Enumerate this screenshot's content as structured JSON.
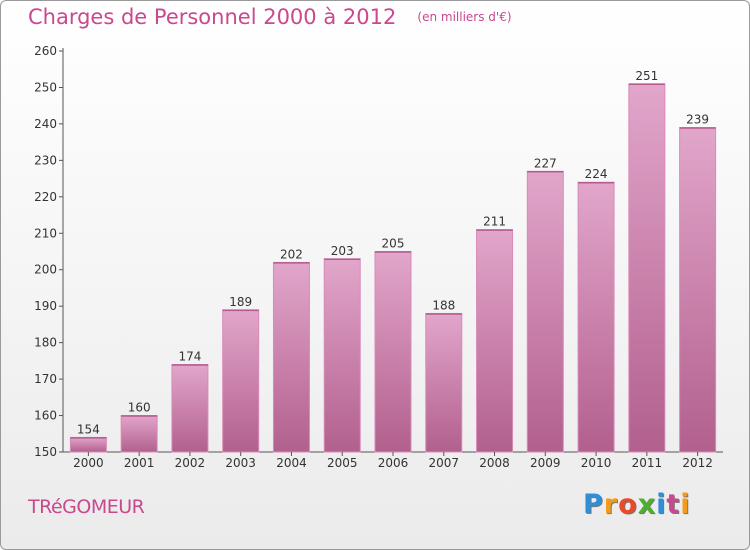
{
  "header": {
    "title": "Charges de Personnel 2000 à 2012",
    "subtitle": "(en milliers d'€)"
  },
  "footer": {
    "commune": "TRéGOMEUR",
    "logo": {
      "letters": [
        "P",
        "r",
        "o",
        "x",
        "i",
        "t",
        "i"
      ],
      "colors": [
        "#2f8fd6",
        "#f39b1b",
        "#e84a2a",
        "#4caf2f",
        "#2f8fd6",
        "#c9488e",
        "#f39b1b"
      ]
    }
  },
  "chart_data": {
    "type": "bar",
    "categories": [
      "2000",
      "2001",
      "2002",
      "2003",
      "2004",
      "2005",
      "2006",
      "2007",
      "2008",
      "2009",
      "2010",
      "2011",
      "2012"
    ],
    "values": [
      154,
      160,
      174,
      189,
      202,
      203,
      205,
      188,
      211,
      227,
      224,
      251,
      239
    ],
    "data_labels": [
      "154",
      "160",
      "174",
      "189",
      "202",
      "203",
      "205",
      "188",
      "211",
      "227",
      "224",
      "251",
      "239"
    ],
    "ylim": [
      150,
      260
    ],
    "yticks": [
      150,
      160,
      170,
      180,
      190,
      200,
      210,
      220,
      230,
      240,
      250,
      260
    ],
    "xlabel": "",
    "ylabel": "",
    "grid": false,
    "bar_color": "#c9679e",
    "bar_color_light": "#e2a6cb",
    "bar_color_dark": "#b2608d"
  }
}
